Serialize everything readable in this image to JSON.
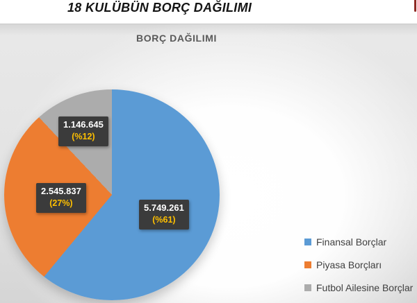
{
  "page": {
    "article_title": "18 KULÜBÜN BORÇ DAĞILIMI"
  },
  "styles": {
    "accent_red": "#8e2a24",
    "label_box_bg": "#3b3b3b",
    "label_value_color": "#ffffff",
    "label_percent_color": "#ffc000",
    "chart_title_color": "#595959",
    "legend_text_color": "#404040",
    "slice_blue": "#5b9bd5",
    "slice_orange": "#ed7d31",
    "slice_gray": "#acacac"
  },
  "chart_data": {
    "type": "pie",
    "title": "BORÇ DAĞILIMI",
    "labels": [
      "Finansal Borçlar",
      "Piyasa Borçları",
      "Futbol Ailesine Borçlar"
    ],
    "values": [
      5749261,
      2545837,
      1146645
    ],
    "percents": [
      61,
      27,
      12
    ],
    "value_labels": [
      "5.749.261",
      "2.545.837",
      "1.146.645"
    ],
    "percent_labels": [
      "(%61)",
      "(27%)",
      "(%12)"
    ],
    "colors": [
      "#5b9bd5",
      "#ed7d31",
      "#acacac"
    ],
    "start_angle_deg": 0,
    "direction": "clockwise",
    "legend_position": "right",
    "data_label_style": "value and percent on dark badge over slice"
  }
}
